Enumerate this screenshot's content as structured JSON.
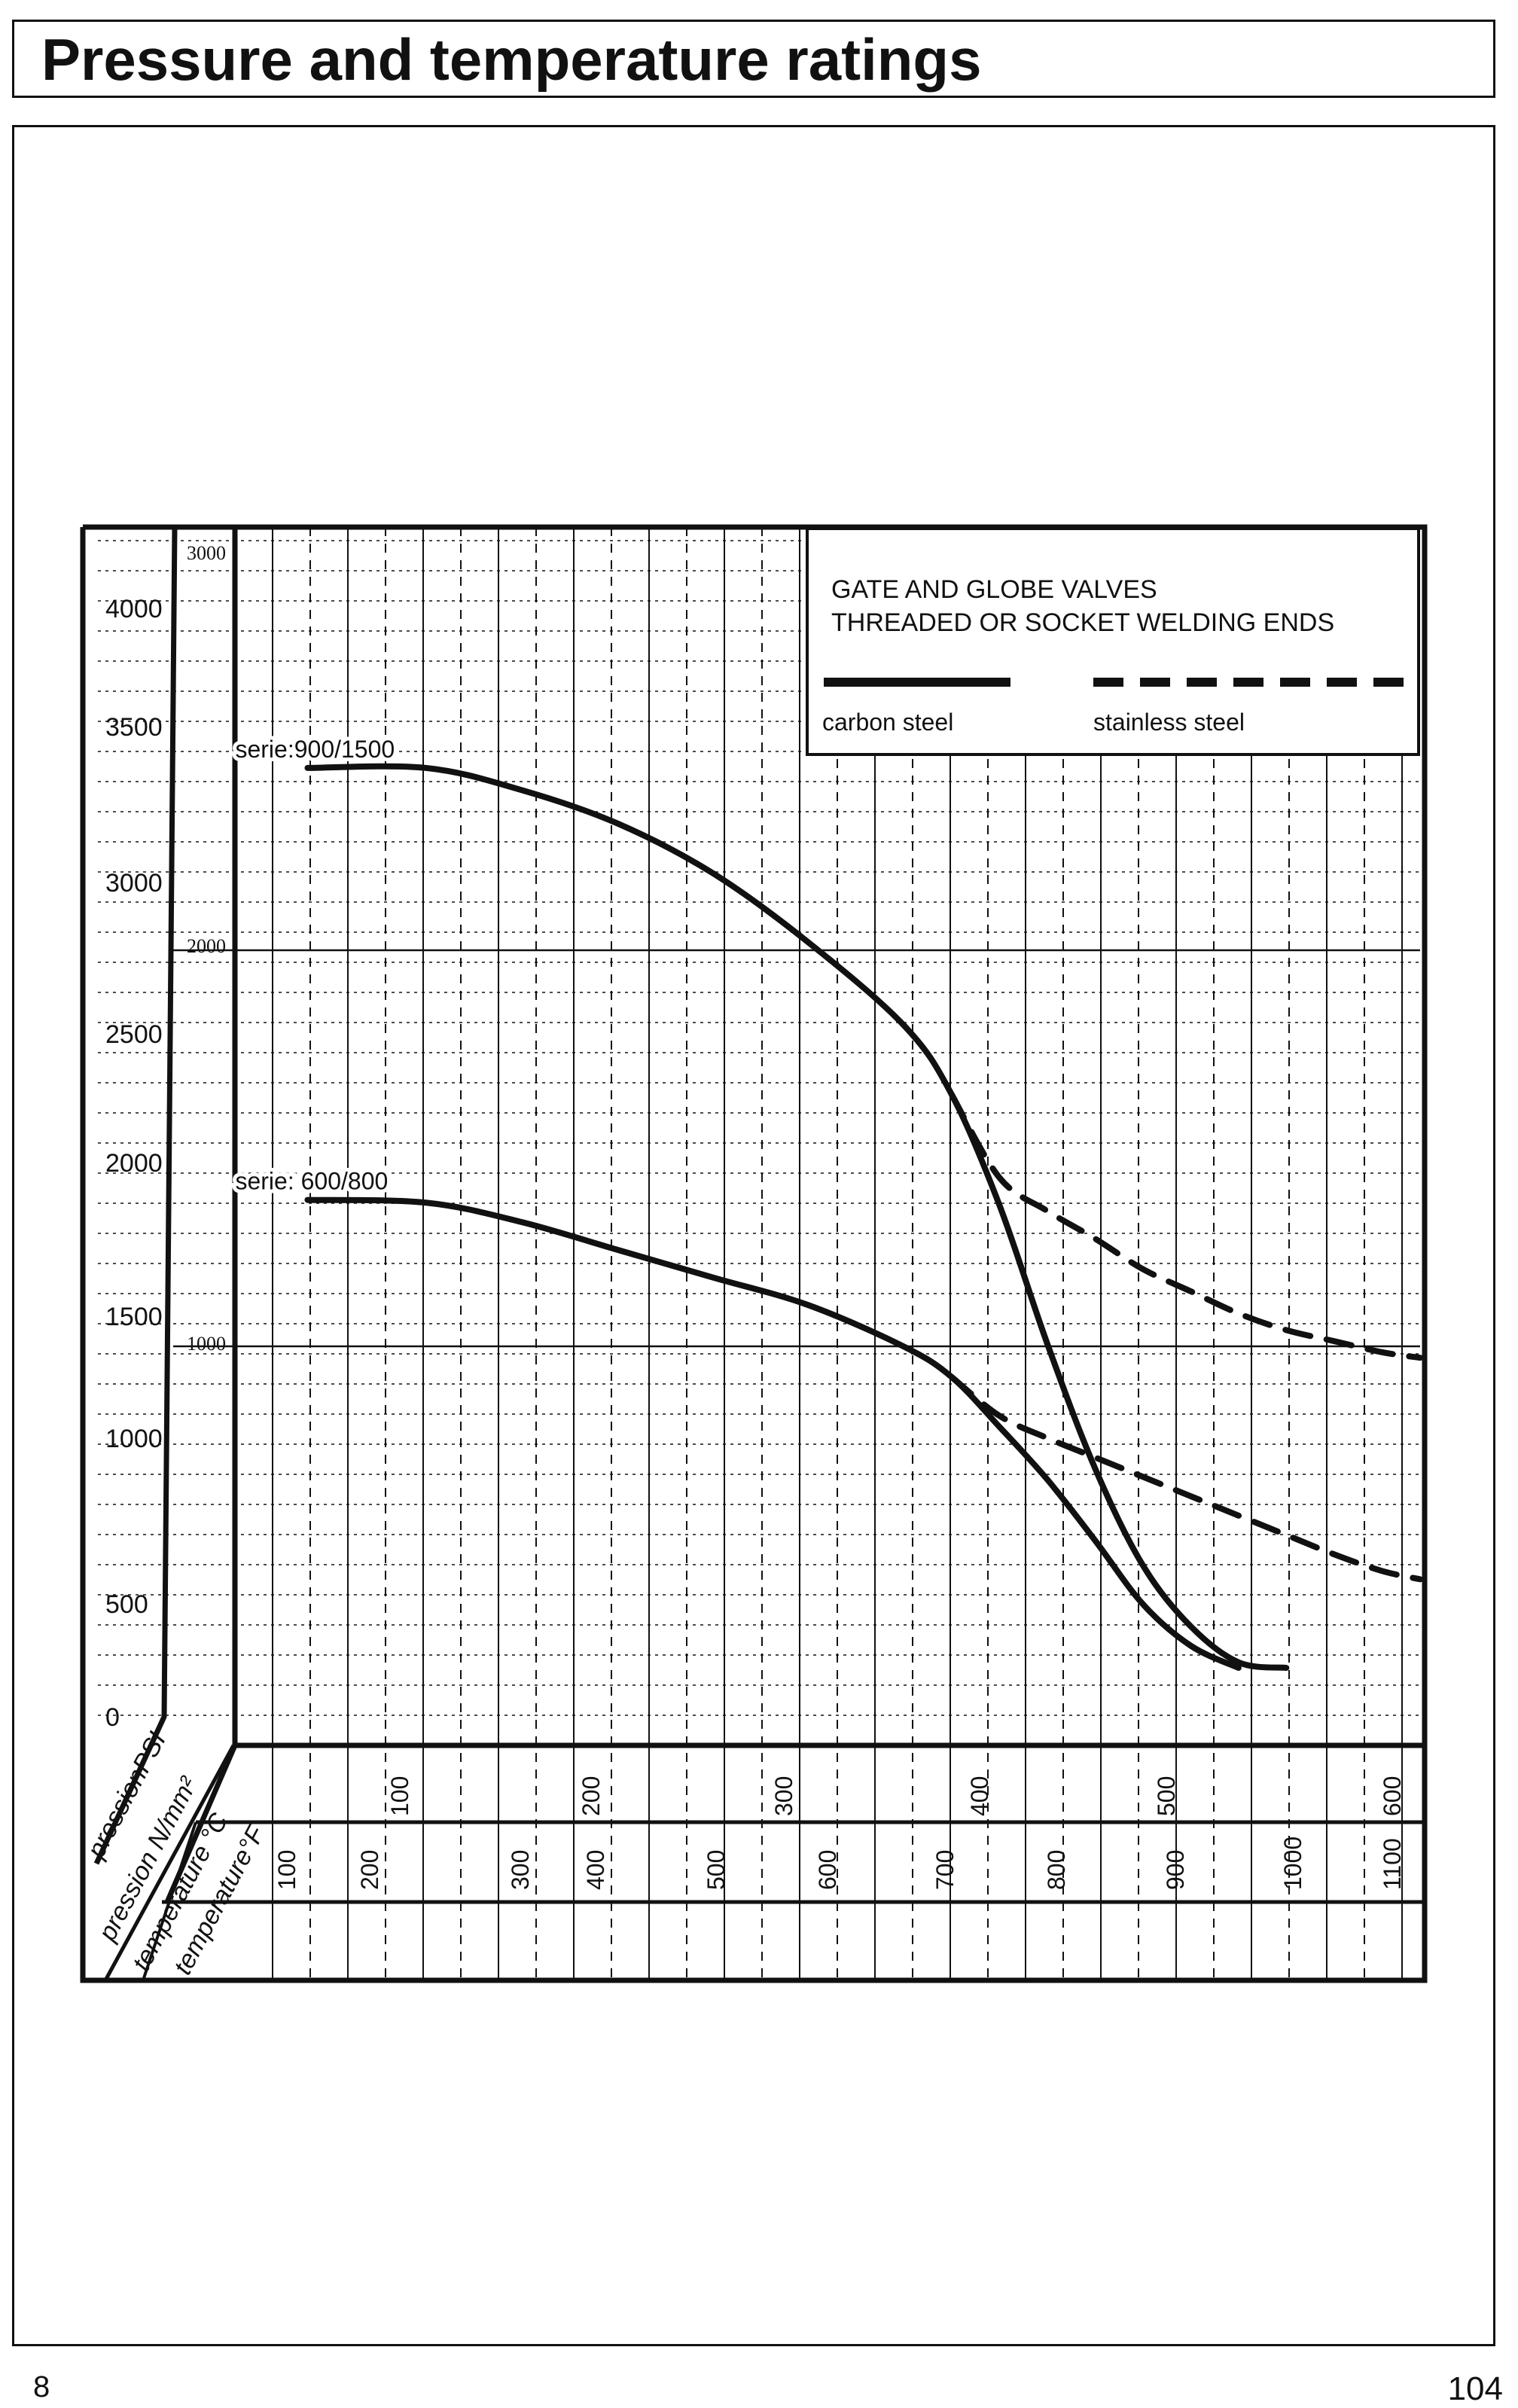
{
  "page": {
    "title": "Pressure and temperature ratings",
    "footer_left": "8",
    "page_number": "104"
  },
  "colors": {
    "ink": "#111111",
    "background": "#ffffff"
  },
  "chart_data": {
    "type": "line",
    "title": "",
    "legend": {
      "heading_line1": "GATE AND GLOBE VALVES",
      "heading_line2": "THREADED OR SOCKET WELDING ENDS",
      "items": [
        {
          "label": "carbon steel",
          "style": "solid"
        },
        {
          "label": "stainless steel",
          "style": "dashed"
        }
      ],
      "placement": "top-right"
    },
    "axes": {
      "pressure_psi": {
        "label": "pressionPSI",
        "ticks": [
          "0",
          "500",
          "1000",
          "1500",
          "2000",
          "2500",
          "3000",
          "3500",
          "4000"
        ],
        "range": [
          0,
          4400
        ]
      },
      "pressure_nmm2": {
        "label": "pression N/mm²",
        "ticks": [
          "1000",
          "2000",
          "3000"
        ]
      },
      "temperature_c": {
        "label": "temperature °C",
        "ticks": [
          "100",
          "200",
          "300",
          "400",
          "500",
          "600"
        ],
        "range": [
          0,
          620
        ]
      },
      "temperature_f": {
        "label": "temperature°F",
        "ticks": [
          "100",
          "200",
          "300",
          "400",
          "500",
          "600",
          "700",
          "800",
          "900",
          "1000",
          "1100"
        ]
      }
    },
    "grid": true,
    "series": [
      {
        "name": "serie 900/1500",
        "label_text": "serie:900/1500",
        "material": "carbon steel",
        "style": "solid",
        "x": [
          38,
          100,
          150,
          200,
          250,
          300,
          350,
          375,
          400,
          425,
          450,
          475,
          500,
          525,
          550
        ],
        "y": [
          3530,
          3530,
          3450,
          3330,
          3150,
          2900,
          2600,
          2350,
          1950,
          1450,
          1000,
          650,
          430,
          300,
          280
        ]
      },
      {
        "name": "serie 900/1500",
        "material": "stainless steel",
        "style": "dashed",
        "x": [
          375,
          400,
          425,
          450,
          475,
          500,
          525,
          550,
          575,
          600,
          620
        ],
        "y": [
          2350,
          2050,
          1930,
          1830,
          1720,
          1640,
          1560,
          1500,
          1460,
          1420,
          1400
        ]
      },
      {
        "name": "serie 600/800",
        "label_text": "serie: 600/800",
        "material": "carbon steel",
        "style": "solid",
        "x": [
          38,
          100,
          150,
          200,
          250,
          300,
          350,
          375,
          400,
          425,
          450,
          475,
          500,
          525
        ],
        "y": [
          1970,
          1960,
          1890,
          1790,
          1690,
          1590,
          1440,
          1330,
          1150,
          960,
          740,
          510,
          360,
          280
        ]
      },
      {
        "name": "serie 600/800",
        "material": "stainless steel",
        "style": "dashed",
        "x": [
          375,
          400,
          425,
          450,
          475,
          500,
          525,
          550,
          575,
          600,
          620
        ],
        "y": [
          1330,
          1190,
          1110,
          1040,
          970,
          900,
          830,
          760,
          690,
          630,
          600
        ]
      }
    ]
  }
}
